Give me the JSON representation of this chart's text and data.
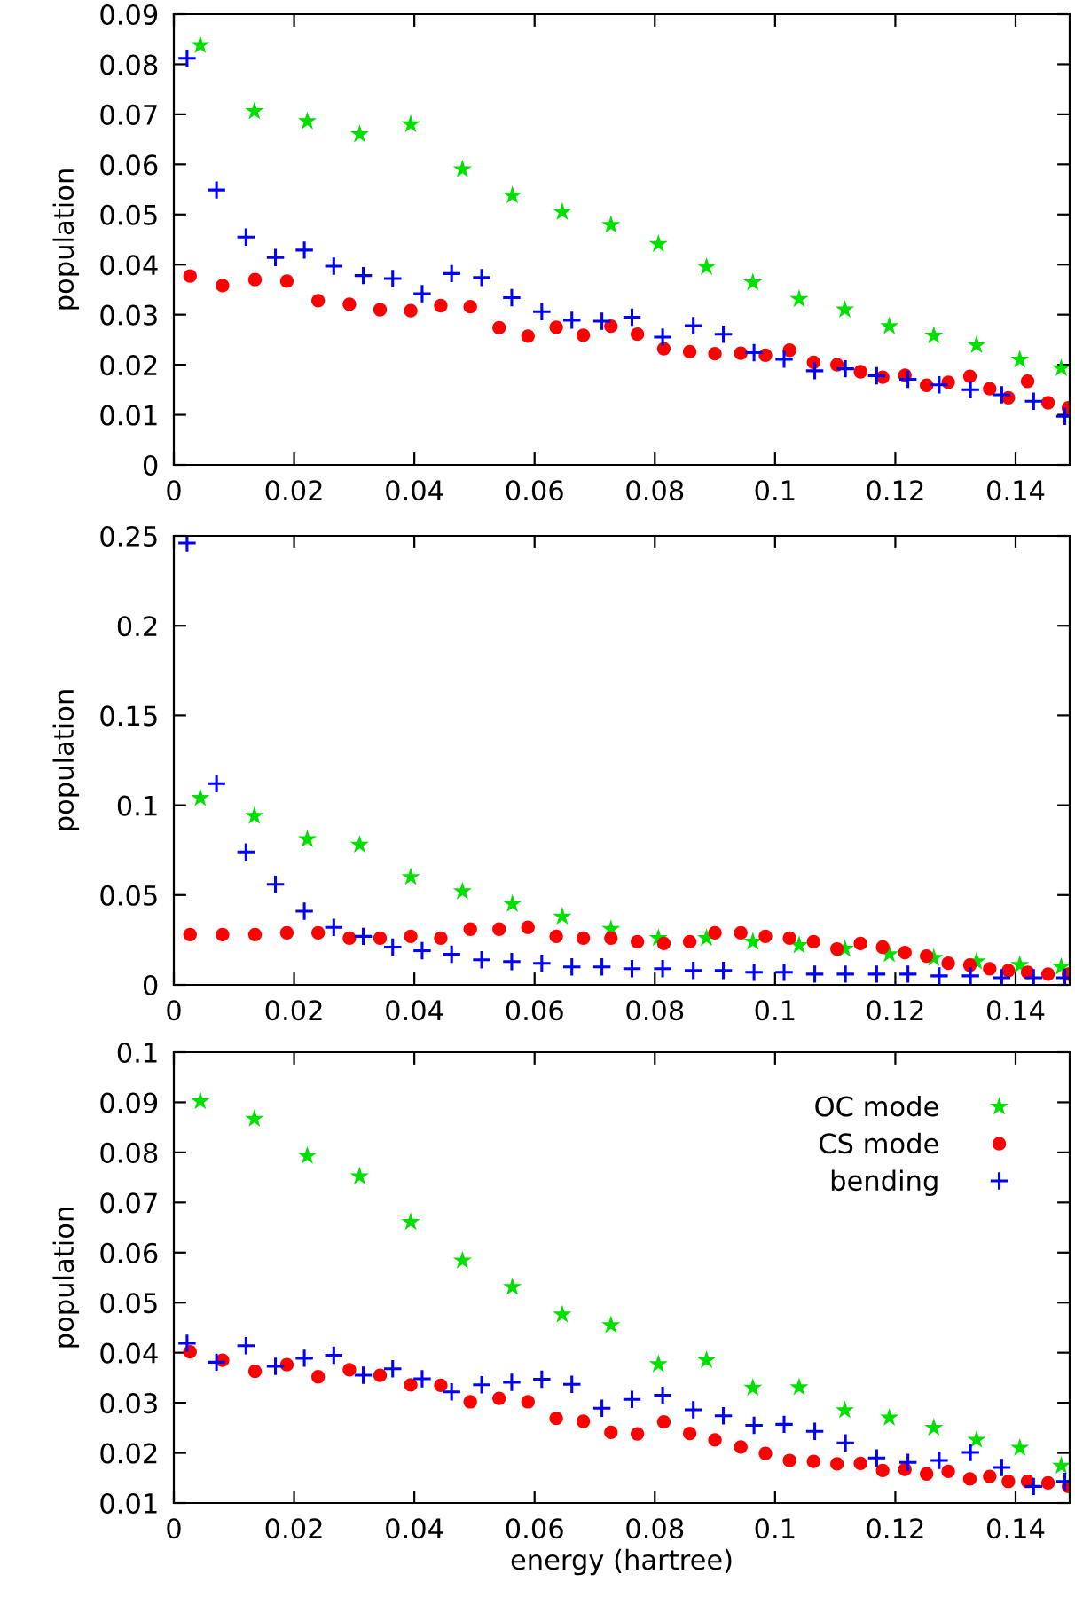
{
  "chart_data": [
    {
      "type": "scatter",
      "ylabel": "population",
      "xlim": [
        0,
        0.149
      ],
      "xticks": [
        0,
        0.02,
        0.04,
        0.06,
        0.08,
        0.1,
        0.12,
        0.14
      ],
      "ylim": [
        0,
        0.09
      ],
      "yticks": [
        0,
        0.01,
        0.02,
        0.03,
        0.04,
        0.05,
        0.06,
        0.07,
        0.08,
        0.09
      ],
      "grid": false,
      "legend": false,
      "series": [
        {
          "color": "#00e000",
          "marker": "star",
          "x": [
            0.0044,
            0.0134,
            0.0222,
            0.0309,
            0.0394,
            0.048,
            0.0563,
            0.0646,
            0.0727,
            0.0806,
            0.0886,
            0.0963,
            0.104,
            0.1116,
            0.119,
            0.1264,
            0.1335,
            0.1407,
            0.1476
          ],
          "values": [
            0.0838,
            0.0706,
            0.0686,
            0.066,
            0.068,
            0.059,
            0.0538,
            0.0505,
            0.0479,
            0.0441,
            0.0395,
            0.0364,
            0.0331,
            0.031,
            0.0277,
            0.0258,
            0.0239,
            0.021,
            0.0193
          ]
        },
        {
          "color": "#ff0000",
          "marker": "circle",
          "x": [
            0.0027,
            0.0081,
            0.0135,
            0.0188,
            0.024,
            0.0292,
            0.0343,
            0.0394,
            0.0444,
            0.0493,
            0.0541,
            0.0589,
            0.0636,
            0.0681,
            0.0727,
            0.0771,
            0.0815,
            0.0858,
            0.09,
            0.0943,
            0.0984,
            0.1024,
            0.1064,
            0.1103,
            0.1142,
            0.1179,
            0.1216,
            0.1252,
            0.1288,
            0.1324,
            0.1357,
            0.1388,
            0.142,
            0.1454,
            0.1488
          ],
          "values": [
            0.0377,
            0.0358,
            0.037,
            0.0367,
            0.0328,
            0.0321,
            0.031,
            0.0308,
            0.0318,
            0.0316,
            0.0274,
            0.0257,
            0.0275,
            0.0259,
            0.0277,
            0.0261,
            0.0232,
            0.0226,
            0.0222,
            0.0223,
            0.0219,
            0.0229,
            0.0205,
            0.02,
            0.0186,
            0.0175,
            0.0179,
            0.0159,
            0.0165,
            0.0177,
            0.0152,
            0.0134,
            0.0167,
            0.0124,
            0.0114
          ]
        },
        {
          "color": "#0000ff",
          "marker": "cross",
          "x": [
            0.0022,
            0.0071,
            0.012,
            0.0169,
            0.0217,
            0.0266,
            0.0315,
            0.0364,
            0.0413,
            0.0462,
            0.0512,
            0.0562,
            0.0612,
            0.0662,
            0.0712,
            0.0762,
            0.0813,
            0.0864,
            0.0914,
            0.0965,
            0.1015,
            0.1066,
            0.1117,
            0.1169,
            0.1221,
            0.1273,
            0.1325,
            0.1377,
            0.143,
            0.1482
          ],
          "values": [
            0.0812,
            0.0549,
            0.0455,
            0.0414,
            0.0429,
            0.0397,
            0.0378,
            0.0372,
            0.0342,
            0.0382,
            0.0374,
            0.0334,
            0.0306,
            0.0289,
            0.0287,
            0.0295,
            0.0255,
            0.0278,
            0.0261,
            0.0224,
            0.0211,
            0.0188,
            0.0192,
            0.0178,
            0.0171,
            0.016,
            0.015,
            0.014,
            0.0127,
            0.0097
          ]
        }
      ]
    },
    {
      "type": "scatter",
      "ylabel": "population",
      "xlim": [
        0,
        0.149
      ],
      "xticks": [
        0,
        0.02,
        0.04,
        0.06,
        0.08,
        0.1,
        0.12,
        0.14
      ],
      "ylim": [
        0,
        0.25
      ],
      "yticks": [
        0,
        0.05,
        0.1,
        0.15,
        0.2,
        0.25
      ],
      "grid": false,
      "legend": false,
      "series": [
        {
          "color": "#00e000",
          "marker": "star",
          "x": [
            0.0044,
            0.0134,
            0.0222,
            0.0309,
            0.0394,
            0.048,
            0.0563,
            0.0646,
            0.0727,
            0.0806,
            0.0886,
            0.0963,
            0.104,
            0.1116,
            0.119,
            0.1264,
            0.1335,
            0.1407,
            0.1476
          ],
          "values": [
            0.104,
            0.094,
            0.081,
            0.078,
            0.06,
            0.052,
            0.045,
            0.038,
            0.031,
            0.026,
            0.026,
            0.024,
            0.022,
            0.02,
            0.017,
            0.015,
            0.013,
            0.011,
            0.01
          ]
        },
        {
          "color": "#ff0000",
          "marker": "circle",
          "x": [
            0.0027,
            0.0081,
            0.0135,
            0.0188,
            0.024,
            0.0292,
            0.0343,
            0.0394,
            0.0444,
            0.0493,
            0.0541,
            0.0589,
            0.0636,
            0.0681,
            0.0727,
            0.0771,
            0.0815,
            0.0858,
            0.09,
            0.0943,
            0.0984,
            0.1024,
            0.1064,
            0.1103,
            0.1142,
            0.1179,
            0.1216,
            0.1252,
            0.1288,
            0.1324,
            0.1357,
            0.1388,
            0.142,
            0.1454,
            0.1488
          ],
          "values": [
            0.028,
            0.028,
            0.028,
            0.029,
            0.029,
            0.026,
            0.026,
            0.027,
            0.026,
            0.031,
            0.031,
            0.032,
            0.027,
            0.026,
            0.026,
            0.024,
            0.023,
            0.024,
            0.029,
            0.029,
            0.027,
            0.026,
            0.024,
            0.02,
            0.023,
            0.021,
            0.018,
            0.016,
            0.012,
            0.011,
            0.009,
            0.008,
            0.007,
            0.006,
            0.006
          ]
        },
        {
          "color": "#0000ff",
          "marker": "cross",
          "x": [
            0.0022,
            0.0071,
            0.012,
            0.0169,
            0.0217,
            0.0266,
            0.0315,
            0.0364,
            0.0413,
            0.0462,
            0.0512,
            0.0562,
            0.0612,
            0.0662,
            0.0712,
            0.0762,
            0.0813,
            0.0864,
            0.0914,
            0.0965,
            0.1015,
            0.1066,
            0.1117,
            0.1169,
            0.1221,
            0.1273,
            0.1325,
            0.1377,
            0.143,
            0.1482
          ],
          "values": [
            0.246,
            0.112,
            0.074,
            0.056,
            0.041,
            0.032,
            0.027,
            0.021,
            0.019,
            0.017,
            0.014,
            0.013,
            0.012,
            0.01,
            0.01,
            0.009,
            0.009,
            0.008,
            0.008,
            0.007,
            0.007,
            0.006,
            0.006,
            0.006,
            0.006,
            0.005,
            0.005,
            0.004,
            0.004,
            0.004
          ]
        }
      ]
    },
    {
      "type": "scatter",
      "xlabel": "energy (hartree)",
      "ylabel": "population",
      "xlim": [
        0,
        0.149
      ],
      "xticks": [
        0,
        0.02,
        0.04,
        0.06,
        0.08,
        0.1,
        0.12,
        0.14
      ],
      "ylim": [
        0.01,
        0.1
      ],
      "yticks": [
        0.01,
        0.02,
        0.03,
        0.04,
        0.05,
        0.06,
        0.07,
        0.08,
        0.09,
        0.1
      ],
      "grid": false,
      "legend": "top right",
      "series": [
        {
          "name": "OC mode",
          "color": "#00e000",
          "marker": "star",
          "x": [
            0.0044,
            0.0134,
            0.0222,
            0.0309,
            0.0394,
            0.048,
            0.0563,
            0.0646,
            0.0727,
            0.0806,
            0.0886,
            0.0963,
            0.104,
            0.1116,
            0.119,
            0.1264,
            0.1335,
            0.1407,
            0.1476
          ],
          "values": [
            0.0902,
            0.0867,
            0.0793,
            0.0752,
            0.0661,
            0.0584,
            0.0531,
            0.0476,
            0.0455,
            0.0377,
            0.0385,
            0.033,
            0.0331,
            0.0285,
            0.027,
            0.025,
            0.0226,
            0.021,
            0.0174
          ]
        },
        {
          "name": "CS mode",
          "color": "#ff0000",
          "marker": "circle",
          "x": [
            0.0027,
            0.0081,
            0.0135,
            0.0188,
            0.024,
            0.0292,
            0.0343,
            0.0394,
            0.0444,
            0.0493,
            0.0541,
            0.0589,
            0.0636,
            0.0681,
            0.0727,
            0.0771,
            0.0815,
            0.0858,
            0.09,
            0.0943,
            0.0984,
            0.1024,
            0.1064,
            0.1103,
            0.1142,
            0.1179,
            0.1216,
            0.1252,
            0.1288,
            0.1324,
            0.1357,
            0.1388,
            0.142,
            0.1454,
            0.1488
          ],
          "values": [
            0.0402,
            0.0385,
            0.0363,
            0.0376,
            0.0352,
            0.0366,
            0.0355,
            0.0336,
            0.0335,
            0.0302,
            0.0309,
            0.0302,
            0.0269,
            0.0263,
            0.0241,
            0.0238,
            0.0262,
            0.0239,
            0.0226,
            0.0212,
            0.0199,
            0.0185,
            0.0183,
            0.0178,
            0.0179,
            0.0165,
            0.0167,
            0.0158,
            0.0163,
            0.0148,
            0.0153,
            0.0143,
            0.0143,
            0.014,
            0.0133
          ]
        },
        {
          "name": "bending",
          "color": "#0000ff",
          "marker": "cross",
          "x": [
            0.0022,
            0.0071,
            0.012,
            0.0169,
            0.0217,
            0.0266,
            0.0315,
            0.0364,
            0.0413,
            0.0462,
            0.0512,
            0.0562,
            0.0612,
            0.0662,
            0.0712,
            0.0762,
            0.0813,
            0.0864,
            0.0914,
            0.0965,
            0.1015,
            0.1066,
            0.1117,
            0.1169,
            0.1221,
            0.1273,
            0.1325,
            0.1377,
            0.143,
            0.1482
          ],
          "values": [
            0.0419,
            0.0381,
            0.0414,
            0.0373,
            0.0389,
            0.0395,
            0.0355,
            0.0368,
            0.0348,
            0.0322,
            0.0336,
            0.0341,
            0.0347,
            0.0337,
            0.0289,
            0.0307,
            0.0315,
            0.0286,
            0.0274,
            0.0255,
            0.0257,
            0.0243,
            0.022,
            0.019,
            0.0181,
            0.0185,
            0.0201,
            0.0171,
            0.0133,
            0.0143
          ]
        }
      ]
    }
  ]
}
